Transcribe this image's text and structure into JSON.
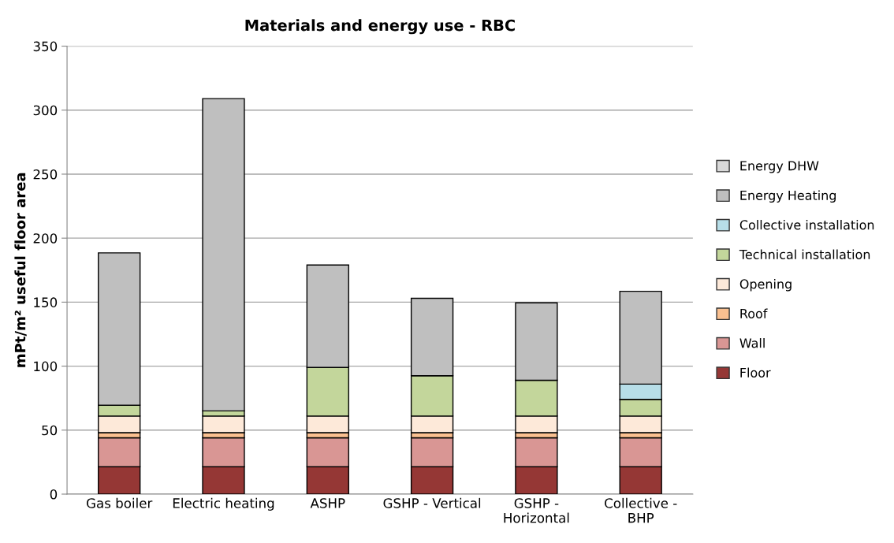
{
  "chart_data": {
    "type": "bar",
    "title": "Materials and energy use - RBC",
    "ylabel": "mPt/m² useful floor area",
    "stacked": true,
    "grid": "y",
    "legend": "right",
    "categories": [
      "Gas boiler",
      "Electric heating",
      "ASHP",
      "GSHP - Vertical",
      "GSHP -\nHorizontal",
      "Collective -\nBHP"
    ],
    "ylim": [
      0,
      350
    ],
    "yticks": [
      0,
      50,
      100,
      150,
      200,
      250,
      300,
      350
    ],
    "series": [
      {
        "name": "Floor",
        "color": "#953735",
        "values": [
          21.5,
          21.5,
          21.5,
          21.5,
          21.5,
          21.5
        ]
      },
      {
        "name": "Wall",
        "color": "#d99694",
        "values": [
          22.5,
          22.5,
          22.5,
          22.5,
          22.5,
          22.5
        ]
      },
      {
        "name": "Roof",
        "color": "#fac090",
        "values": [
          4,
          4,
          4,
          4,
          4,
          4
        ]
      },
      {
        "name": "Opening",
        "color": "#fde9d9",
        "values": [
          13,
          13,
          13,
          13,
          13,
          13
        ]
      },
      {
        "name": "Technical installation",
        "color": "#c3d69b",
        "values": [
          8.5,
          4,
          38,
          31.5,
          28,
          13
        ]
      },
      {
        "name": "Collective installation",
        "color": "#b7dee8",
        "values": [
          null,
          null,
          null,
          null,
          null,
          12
        ]
      },
      {
        "name": "Energy Heating",
        "color": "#bfbfbf",
        "values": [
          119,
          244,
          80,
          60.5,
          60.5,
          72.5
        ]
      },
      {
        "name": "Energy DHW",
        "color": "#d9d9d9",
        "values": [
          null,
          null,
          null,
          null,
          null,
          null
        ]
      }
    ]
  }
}
